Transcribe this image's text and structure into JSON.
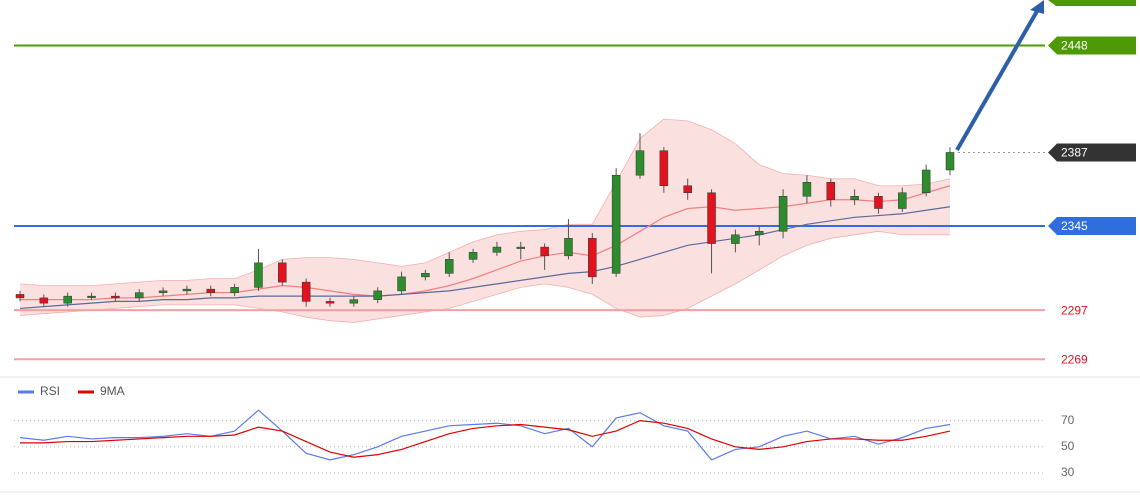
{
  "chart_data": [
    {
      "type": "candlestick",
      "open": [
        2306,
        2304,
        2301,
        2305,
        2305,
        2304,
        2307,
        2308,
        2309,
        2307,
        2310,
        2324,
        2313,
        2302,
        2301,
        2303,
        2308,
        2316,
        2318,
        2326,
        2330,
        2333,
        2333,
        2328,
        2338,
        2318,
        2374,
        2388,
        2368,
        2364,
        2335,
        2340,
        2342,
        2362,
        2370,
        2360,
        2362,
        2355,
        2364,
        2377
      ],
      "high": [
        2308,
        2306,
        2307,
        2307,
        2307,
        2309,
        2310,
        2311,
        2311,
        2312,
        2332,
        2326,
        2315,
        2304,
        2305,
        2310,
        2319,
        2320,
        2330,
        2332,
        2336,
        2336,
        2335,
        2349,
        2341,
        2378,
        2398,
        2390,
        2372,
        2366,
        2343,
        2345,
        2366,
        2374,
        2372,
        2366,
        2364,
        2367,
        2380,
        2390
      ],
      "low": [
        2302,
        2299,
        2299,
        2303,
        2302,
        2302,
        2305,
        2306,
        2305,
        2305,
        2308,
        2311,
        2299,
        2299,
        2299,
        2301,
        2306,
        2314,
        2316,
        2324,
        2328,
        2326,
        2320,
        2326,
        2312,
        2316,
        2372,
        2364,
        2360,
        2318,
        2330,
        2334,
        2338,
        2358,
        2356,
        2357,
        2352,
        2353,
        2362,
        2374
      ],
      "close": [
        2304,
        2301,
        2305,
        2305,
        2304,
        2307,
        2308,
        2309,
        2307,
        2310,
        2324,
        2313,
        2302,
        2301,
        2303,
        2308,
        2316,
        2318,
        2326,
        2330,
        2333,
        2333,
        2328,
        2338,
        2316,
        2374,
        2388,
        2368,
        2364,
        2335,
        2340,
        2342,
        2362,
        2370,
        2360,
        2362,
        2355,
        2364,
        2377,
        2387
      ],
      "up_color": "#2e8b2e",
      "down_color": "#e0141e",
      "overlays": [
        {
          "color": "#f08080",
          "values": [
            2303,
            2303,
            2303,
            2303,
            2304,
            2304,
            2305,
            2306,
            2307,
            2307,
            2309,
            2311,
            2310,
            2308,
            2306,
            2305,
            2306,
            2308,
            2311,
            2315,
            2320,
            2325,
            2328,
            2330,
            2328,
            2334,
            2342,
            2350,
            2355,
            2356,
            2354,
            2355,
            2356,
            2358,
            2360,
            2360,
            2359,
            2360,
            2364,
            2368
          ]
        },
        {
          "color": "#5a6b9a",
          "values": [
            2298,
            2299,
            2300,
            2301,
            2302,
            2302,
            2303,
            2303,
            2304,
            2304,
            2305,
            2305,
            2305,
            2305,
            2305,
            2305,
            2306,
            2307,
            2308,
            2310,
            2312,
            2314,
            2316,
            2318,
            2319,
            2322,
            2326,
            2330,
            2334,
            2336,
            2338,
            2340,
            2343,
            2346,
            2348,
            2350,
            2351,
            2352,
            2354,
            2356
          ]
        }
      ],
      "band": {
        "color": "#f7c6c6",
        "upper": [
          2312,
          2311,
          2311,
          2311,
          2312,
          2313,
          2314,
          2314,
          2315,
          2315,
          2320,
          2326,
          2327,
          2327,
          2326,
          2324,
          2322,
          2324,
          2330,
          2336,
          2340,
          2342,
          2343,
          2346,
          2346,
          2370,
          2395,
          2406,
          2405,
          2400,
          2392,
          2380,
          2375,
          2374,
          2372,
          2372,
          2368,
          2368,
          2369,
          2372
        ],
        "lower": [
          2294,
          2295,
          2296,
          2297,
          2298,
          2299,
          2300,
          2300,
          2300,
          2300,
          2298,
          2296,
          2293,
          2291,
          2290,
          2292,
          2294,
          2296,
          2298,
          2302,
          2306,
          2310,
          2312,
          2310,
          2306,
          2298,
          2293,
          2294,
          2298,
          2305,
          2312,
          2320,
          2328,
          2334,
          2338,
          2340,
          2342,
          2340,
          2340,
          2340
        ]
      },
      "ylim": [
        2260,
        2474
      ],
      "levels": [
        {
          "value": 2448,
          "line_color": "#4e9a06",
          "tag": true,
          "tag_color": "#4e9a06",
          "text_color": "#ffffff"
        },
        {
          "value": 2387,
          "line_color": "#999999",
          "tag": true,
          "tag_color": "#333333",
          "text_color": "#ffffff",
          "dotted": true
        },
        {
          "value": 2345,
          "line_color": "#2f6fdb",
          "tag": true,
          "tag_color": "#2f6fdb",
          "text_color": "#ffffff"
        },
        {
          "value": 2297,
          "line_color": "#f4a0a0",
          "tag": false,
          "text_color": "#e0141e"
        },
        {
          "value": 2269,
          "line_color": "#f4a0a0",
          "tag": false,
          "text_color": "#e0141e"
        }
      ]
    },
    {
      "type": "line",
      "series": [
        {
          "name": "RSI",
          "color": "#5b7bea",
          "values": [
            57,
            55,
            58,
            56,
            57,
            57,
            58,
            60,
            58,
            62,
            78,
            62,
            45,
            40,
            44,
            50,
            58,
            62,
            66,
            67,
            68,
            66,
            60,
            64,
            50,
            72,
            76,
            66,
            62,
            40,
            48,
            50,
            58,
            62,
            56,
            58,
            52,
            57,
            64,
            67
          ]
        },
        {
          "name": "9MA",
          "color": "#e00000",
          "values": [
            53,
            53,
            54,
            54,
            55,
            56,
            57,
            58,
            58,
            59,
            65,
            62,
            54,
            46,
            42,
            44,
            48,
            54,
            60,
            64,
            66,
            67,
            65,
            63,
            58,
            62,
            70,
            68,
            64,
            56,
            50,
            48,
            50,
            54,
            56,
            56,
            55,
            55,
            58,
            62
          ]
        }
      ],
      "ylim": [
        17,
        101
      ],
      "yticks": [
        70,
        50,
        30
      ],
      "grid": true
    }
  ]
}
